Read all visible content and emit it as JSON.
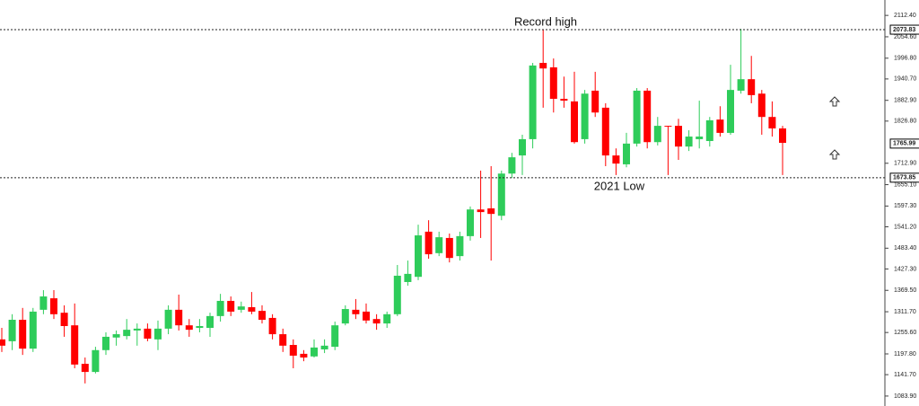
{
  "chart_data": {
    "type": "candlestick",
    "open": [
      1237,
      1232,
      1290,
      1212,
      1317,
      1348,
      1309,
      1275,
      1171,
      1149,
      1208,
      1242,
      1246,
      1261,
      1266,
      1237,
      1266,
      1317,
      1275,
      1268,
      1268,
      1300,
      1341,
      1317,
      1324,
      1314,
      1295,
      1251,
      1222,
      1198,
      1191,
      1210,
      1217,
      1280,
      1317,
      1312,
      1292,
      1280,
      1305,
      1392,
      1406,
      1528,
      1470,
      1511,
      1462,
      1516,
      1588,
      1591,
      1571,
      1685,
      1734,
      1778,
      1984,
      1972,
      1887,
      1880,
      1778,
      1909,
      1863,
      1734,
      1710,
      1766,
      1909,
      1770,
      1814,
      1814,
      1758,
      1778,
      1773,
      1831,
      1795,
      1909,
      1940,
      1901,
      1838,
      1807
    ],
    "high": [
      1268,
      1305,
      1322,
      1322,
      1370,
      1370,
      1329,
      1334,
      1188,
      1217,
      1256,
      1261,
      1292,
      1280,
      1280,
      1288,
      1329,
      1358,
      1292,
      1292,
      1309,
      1360,
      1353,
      1339,
      1365,
      1329,
      1305,
      1266,
      1237,
      1208,
      1237,
      1237,
      1285,
      1329,
      1346,
      1334,
      1305,
      1312,
      1438,
      1450,
      1547,
      1559,
      1528,
      1523,
      1528,
      1596,
      1693,
      1705,
      1693,
      1741,
      1790,
      1984,
      2074,
      1996,
      1947,
      1960,
      1911,
      1960,
      1875,
      1753,
      1795,
      1916,
      1916,
      1838,
      1814,
      1833,
      1802,
      1882,
      1838,
      1867,
      1979,
      2076,
      2003,
      1911,
      1880,
      1814
    ],
    "low": [
      1203,
      1208,
      1195,
      1203,
      1305,
      1292,
      1244,
      1159,
      1118,
      1145,
      1195,
      1220,
      1237,
      1220,
      1232,
      1208,
      1251,
      1261,
      1244,
      1256,
      1244,
      1285,
      1300,
      1309,
      1305,
      1280,
      1237,
      1203,
      1159,
      1178,
      1188,
      1200,
      1208,
      1275,
      1292,
      1280,
      1263,
      1268,
      1300,
      1382,
      1397,
      1455,
      1462,
      1445,
      1450,
      1504,
      1511,
      1450,
      1559,
      1673,
      1681,
      1753,
      1863,
      1850,
      1863,
      1766,
      1766,
      1838,
      1705,
      1681,
      1702,
      1758,
      1753,
      1761,
      1681,
      1722,
      1746,
      1753,
      1758,
      1785,
      1790,
      1901,
      1875,
      1790,
      1785,
      1681
    ],
    "close": [
      1220,
      1290,
      1212,
      1312,
      1353,
      1305,
      1273,
      1169,
      1149,
      1208,
      1244,
      1251,
      1263,
      1266,
      1239,
      1266,
      1317,
      1275,
      1263,
      1273,
      1300,
      1341,
      1312,
      1326,
      1312,
      1290,
      1251,
      1220,
      1193,
      1188,
      1215,
      1220,
      1275,
      1319,
      1305,
      1288,
      1280,
      1305,
      1409,
      1414,
      1518,
      1467,
      1513,
      1457,
      1516,
      1588,
      1581,
      1576,
      1685,
      1729,
      1778,
      1977,
      1969,
      1887,
      1882,
      1770,
      1901,
      1850,
      1734,
      1712,
      1766,
      1909,
      1770,
      1814,
      1812,
      1758,
      1785,
      1785,
      1829,
      1795,
      1911,
      1940,
      1897,
      1838,
      1807,
      1768
    ],
    "up_color": "#2ecc5a",
    "down_color": "#ff0000",
    "ylim": [
      1057,
      2154
    ],
    "yticks": [
      {
        "value": 2112.4,
        "label": "2112.40"
      },
      {
        "value": 2054.6,
        "label": "2054.60"
      },
      {
        "value": 1996.8,
        "label": "1996.80"
      },
      {
        "value": 1940.7,
        "label": "1940.70"
      },
      {
        "value": 1882.9,
        "label": "1882.90"
      },
      {
        "value": 1826.8,
        "label": "1826.80"
      },
      {
        "value": 1712.9,
        "label": "1712.90"
      },
      {
        "value": 1655.1,
        "label": "1655.10"
      },
      {
        "value": 1597.3,
        "label": "1597.30"
      },
      {
        "value": 1541.2,
        "label": "1541.20"
      },
      {
        "value": 1483.4,
        "label": "1483.40"
      },
      {
        "value": 1427.3,
        "label": "1427.30"
      },
      {
        "value": 1369.5,
        "label": "1369.50"
      },
      {
        "value": 1311.7,
        "label": "1311.70"
      },
      {
        "value": 1255.6,
        "label": "1255.60"
      },
      {
        "value": 1197.8,
        "label": "1197.80"
      },
      {
        "value": 1141.7,
        "label": "1141.70"
      },
      {
        "value": 1083.9,
        "label": "1083.90"
      }
    ],
    "levels": [
      {
        "value": 2073.83,
        "annotation": "Record high"
      },
      {
        "value": 1673.85,
        "annotation": "2021 Low"
      }
    ],
    "last_price": 1765.99
  }
}
